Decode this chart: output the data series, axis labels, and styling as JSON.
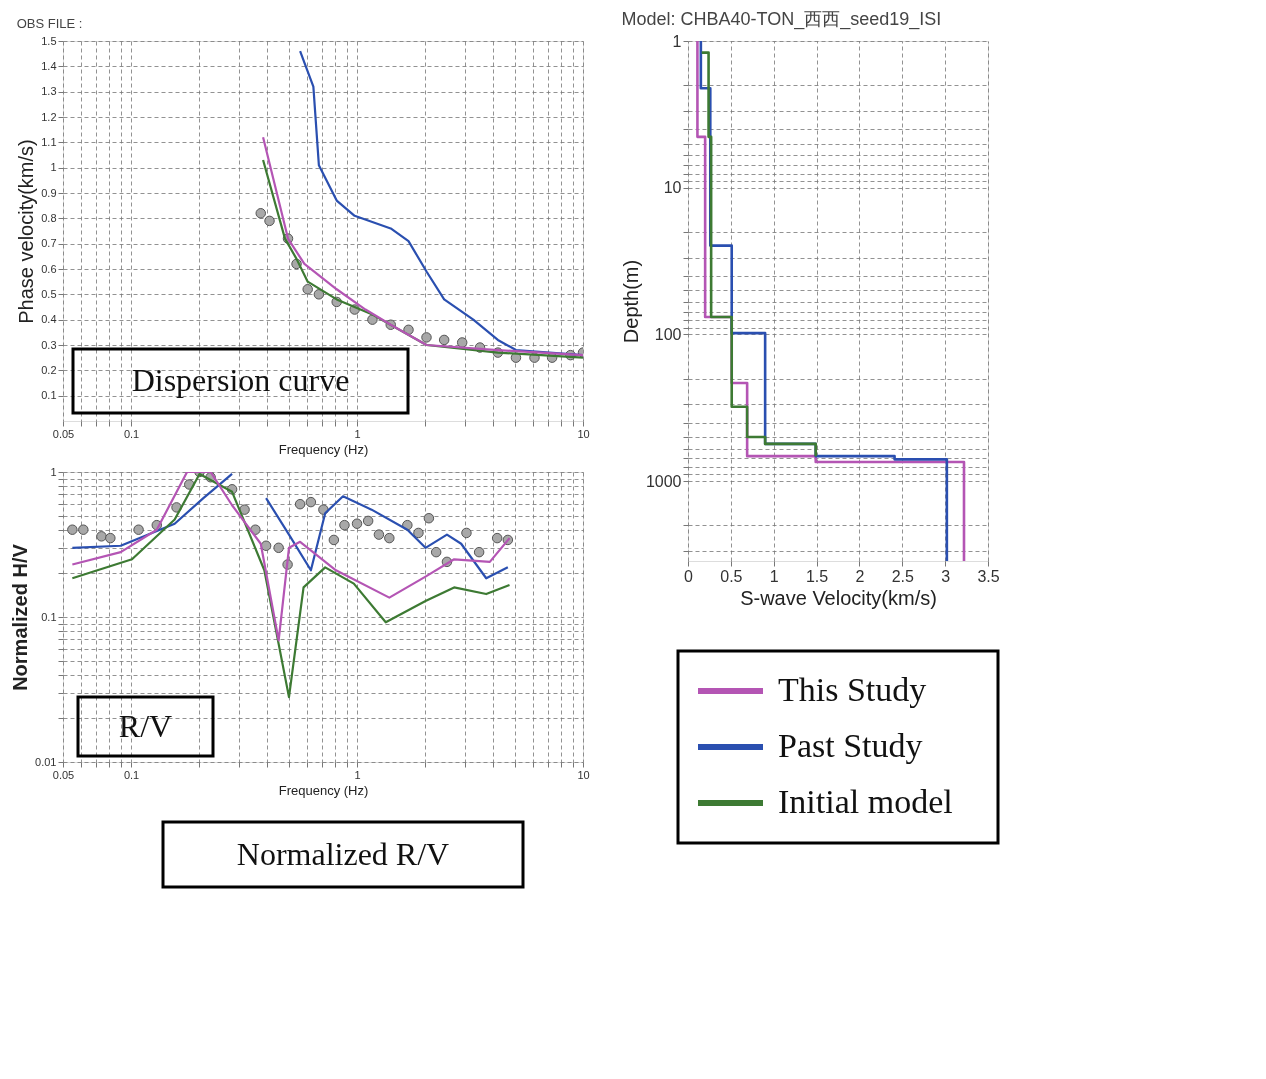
{
  "chart_data": [
    {
      "type": "line",
      "title": "OBS FILE :",
      "xlabel": "Frequency (Hz)",
      "ylabel": "Phase velocity(km/s)",
      "log": "x",
      "grid": true,
      "xlim": [
        0.05,
        10
      ],
      "ylim": [
        0,
        1.5
      ],
      "xticks": [
        0.05,
        {
          "value": 0.06,
          "label": null
        },
        {
          "value": 0.07,
          "label": null
        },
        {
          "value": 0.08,
          "label": null
        },
        {
          "value": 0.09,
          "label": null
        },
        0.1,
        {
          "value": 0.2,
          "label": null
        },
        {
          "value": 0.3,
          "label": null
        },
        {
          "value": 0.4,
          "label": null
        },
        {
          "value": 0.5,
          "label": null
        },
        {
          "value": 0.6,
          "label": null
        },
        {
          "value": 0.7,
          "label": null
        },
        {
          "value": 0.8,
          "label": null
        },
        {
          "value": 0.9,
          "label": null
        },
        1,
        {
          "value": 2,
          "label": null
        },
        {
          "value": 3,
          "label": null
        },
        {
          "value": 4,
          "label": null
        },
        {
          "value": 5,
          "label": null
        },
        {
          "value": 6,
          "label": null
        },
        {
          "value": 7,
          "label": null
        },
        {
          "value": 8,
          "label": null
        },
        {
          "value": 9,
          "label": null
        },
        10
      ],
      "yticks": [
        0.1,
        0.2,
        0.3,
        0.4,
        0.5,
        0.6,
        0.7,
        0.8,
        0.9,
        1,
        1.1,
        1.2,
        1.3,
        1.4,
        1.5
      ],
      "series": [
        {
          "type": "scatter",
          "marker": "circle",
          "color": "#a8a8a8",
          "x": [
            0.375,
            0.41,
            0.495,
            0.54,
            0.605,
            0.678,
            0.813,
            0.976,
            1.17,
            1.41,
            1.69,
            2.03,
            2.43,
            2.92,
            3.5,
            4.2,
            5.05,
            6.1,
            7.3,
            8.8,
            10
          ],
          "values": [
            0.82,
            0.79,
            0.72,
            0.62,
            0.52,
            0.5,
            0.47,
            0.44,
            0.4,
            0.38,
            0.36,
            0.33,
            0.32,
            0.31,
            0.29,
            0.27,
            0.25,
            0.25,
            0.25,
            0.26,
            0.27
          ]
        },
        {
          "color": "#2a4fb0",
          "x": [
            0.56,
            0.641,
            0.678,
            0.813,
            0.976,
            1.41,
            1.69,
            2.03,
            2.43,
            3.27,
            4.2,
            5.05,
            10
          ],
          "values": [
            1.46,
            1.32,
            1.01,
            0.87,
            0.81,
            0.76,
            0.71,
            0.59,
            0.48,
            0.4,
            0.32,
            0.28,
            0.26
          ]
        },
        {
          "color": "#3d7a33",
          "x": [
            0.384,
            0.48,
            0.54,
            0.605,
            0.813,
            1.17,
            2.03,
            4.2,
            10
          ],
          "values": [
            1.03,
            0.72,
            0.64,
            0.55,
            0.48,
            0.42,
            0.3,
            0.27,
            0.25
          ]
        },
        {
          "color": "#b455b4",
          "x": [
            0.384,
            0.495,
            0.585,
            0.813,
            1.09,
            1.41,
            2.03,
            4.2,
            10
          ],
          "values": [
            1.12,
            0.72,
            0.62,
            0.52,
            0.44,
            0.38,
            0.3,
            0.28,
            0.26
          ]
        }
      ],
      "annotations": [
        "Dispersion curve"
      ]
    },
    {
      "type": "line",
      "xlabel": "Frequency (Hz)",
      "ylabel": "Normalized H/V",
      "log": "xy",
      "grid": true,
      "xlim": [
        0.05,
        10
      ],
      "ylim": [
        0.01,
        1
      ],
      "xticks": [
        0.05,
        {
          "value": 0.06,
          "label": null
        },
        {
          "value": 0.07,
          "label": null
        },
        {
          "value": 0.08,
          "label": null
        },
        {
          "value": 0.09,
          "label": null
        },
        0.1,
        {
          "value": 0.2,
          "label": null
        },
        {
          "value": 0.3,
          "label": null
        },
        {
          "value": 0.4,
          "label": null
        },
        {
          "value": 0.5,
          "label": null
        },
        {
          "value": 0.6,
          "label": null
        },
        {
          "value": 0.7,
          "label": null
        },
        {
          "value": 0.8,
          "label": null
        },
        {
          "value": 0.9,
          "label": null
        },
        1,
        {
          "value": 2,
          "label": null
        },
        {
          "value": 3,
          "label": null
        },
        {
          "value": 4,
          "label": null
        },
        {
          "value": 5,
          "label": null
        },
        {
          "value": 6,
          "label": null
        },
        {
          "value": 7,
          "label": null
        },
        {
          "value": 8,
          "label": null
        },
        {
          "value": 9,
          "label": null
        },
        10
      ],
      "yticks": [
        0.01,
        {
          "value": 0.02,
          "label": null
        },
        {
          "value": 0.03,
          "label": null
        },
        {
          "value": 0.04,
          "label": null
        },
        {
          "value": 0.05,
          "label": null
        },
        {
          "value": 0.06,
          "label": null
        },
        {
          "value": 0.07,
          "label": null
        },
        {
          "value": 0.08,
          "label": null
        },
        {
          "value": 0.09,
          "label": null
        },
        0.1,
        {
          "value": 0.2,
          "label": null
        },
        {
          "value": 0.3,
          "label": null
        },
        {
          "value": 0.4,
          "label": null
        },
        {
          "value": 0.5,
          "label": null
        },
        {
          "value": 0.6,
          "label": null
        },
        {
          "value": 0.7,
          "label": null
        },
        {
          "value": 0.8,
          "label": null
        },
        {
          "value": 0.9,
          "label": null
        },
        1
      ],
      "series": [
        {
          "type": "scatter",
          "marker": "circle",
          "color": "#a8a8a8",
          "x": [
            0.055,
            0.0615,
            0.074,
            0.081,
            0.108,
            0.13,
            0.159,
            0.181,
            0.201,
            0.225,
            0.28,
            0.318,
            0.355,
            0.396,
            0.45,
            0.493,
            0.56,
            0.625,
            0.71,
            0.79,
            0.88,
            1.0,
            1.12,
            1.25,
            1.39,
            1.67,
            1.87,
            2.08,
            2.24,
            2.5,
            3.05,
            3.47,
            4.17,
            4.65
          ],
          "values": [
            0.4,
            0.4,
            0.36,
            0.35,
            0.4,
            0.43,
            0.57,
            0.82,
            1.0,
            0.92,
            0.76,
            0.55,
            0.4,
            0.31,
            0.3,
            0.23,
            0.6,
            0.62,
            0.55,
            0.34,
            0.43,
            0.44,
            0.46,
            0.37,
            0.35,
            0.43,
            0.38,
            0.48,
            0.28,
            0.24,
            0.38,
            0.28,
            0.35,
            0.34
          ]
        },
        {
          "color": "#2a4fb0",
          "x": [
            0.055,
            0.09,
            0.156,
            0.209,
            0.28,
            0.33,
            0.396,
            0.5,
            0.625,
            0.723,
            0.867,
            1.16,
            1.67,
            2.01,
            2.5,
            2.89,
            3.73,
            4.65
          ],
          "values": [
            0.3,
            0.31,
            0.44,
            0.66,
            0.97,
            null,
            0.66,
            0.37,
            0.21,
            0.52,
            0.68,
            0.55,
            0.4,
            0.3,
            0.37,
            0.32,
            0.185,
            0.22
          ]
        },
        {
          "color": "#3d7a33",
          "x": [
            0.055,
            0.101,
            0.156,
            0.201,
            0.28,
            0.389,
            0.5,
            0.58,
            0.723,
            0.968,
            1.34,
            2.01,
            2.69,
            3.73,
            4.73
          ],
          "values": [
            0.185,
            0.25,
            0.47,
            0.97,
            0.73,
            0.21,
            0.028,
            0.16,
            0.22,
            0.17,
            0.092,
            0.129,
            0.16,
            0.144,
            0.166
          ]
        },
        {
          "color": "#b455b4",
          "x": [
            0.055,
            0.09,
            0.13,
            0.177,
            0.225,
            0.28,
            0.375,
            0.45,
            0.5,
            0.56,
            0.807,
            1.39,
            2.01,
            2.69,
            3.87,
            4.73
          ],
          "values": [
            0.23,
            0.28,
            0.4,
            1.0,
            1.0,
            0.59,
            0.32,
            0.069,
            0.3,
            0.33,
            0.21,
            0.136,
            0.19,
            0.25,
            0.24,
            0.35
          ]
        }
      ],
      "annotations": [
        "R/V",
        "Normalized R/V"
      ]
    },
    {
      "type": "line",
      "title": "Model: CHBA40-TON_西西_seed19_ISI",
      "xlabel": "S-wave Velocity(km/s)",
      "ylabel": "Depth(m)",
      "log": "y",
      "grid": true,
      "legend": "bottom",
      "xlim": [
        0,
        3.5
      ],
      "ylim": [
        3500,
        1
      ],
      "xticks": [
        0,
        0.5,
        1,
        1.5,
        2,
        2.5,
        3,
        3.5
      ],
      "yticks": [
        1,
        {
          "value": 2,
          "label": null
        },
        {
          "value": 3,
          "label": null
        },
        {
          "value": 4,
          "label": null
        },
        {
          "value": 5,
          "label": null
        },
        {
          "value": 6,
          "label": null
        },
        {
          "value": 7,
          "label": null
        },
        {
          "value": 8,
          "label": null
        },
        {
          "value": 9,
          "label": null
        },
        10,
        {
          "value": 20,
          "label": null
        },
        {
          "value": 30,
          "label": null
        },
        {
          "value": 40,
          "label": null
        },
        {
          "value": 50,
          "label": null
        },
        {
          "value": 60,
          "label": null
        },
        {
          "value": 70,
          "label": null
        },
        {
          "value": 80,
          "label": null
        },
        {
          "value": 90,
          "label": null
        },
        100,
        {
          "value": 200,
          "label": null
        },
        {
          "value": 300,
          "label": null
        },
        {
          "value": 400,
          "label": null
        },
        {
          "value": 500,
          "label": null
        },
        {
          "value": 600,
          "label": null
        },
        {
          "value": 700,
          "label": null
        },
        {
          "value": 800,
          "label": null
        },
        {
          "value": 900,
          "label": null
        },
        1000,
        {
          "value": 2000,
          "label": null
        },
        {
          "value": 3000,
          "label": null
        }
      ],
      "series": [
        {
          "name": "This Study",
          "color": "#b455b4",
          "x": [
            0.11,
            0.11,
            0.2,
            0.2,
            0.51,
            0.51,
            0.69,
            0.69,
            1.49,
            1.49,
            3.22,
            3.22
          ],
          "values": [
            1,
            4.5,
            4.5,
            76,
            76,
            214,
            214,
            675,
            675,
            740,
            740,
            3500
          ]
        },
        {
          "name": "Past Study",
          "color": "#2a4fb0",
          "x": [
            0.15,
            0.15,
            0.26,
            0.26,
            0.51,
            0.51,
            0.9,
            0.9,
            1.49,
            1.49,
            2.41,
            2.41,
            3.02,
            3.02
          ],
          "values": [
            1,
            2.1,
            2.1,
            24.8,
            24.8,
            98,
            98,
            557,
            557,
            675,
            675,
            710,
            710,
            3500
          ]
        },
        {
          "name": "Initial model",
          "color": "#3d7a33",
          "x": [
            0.16,
            0.24,
            0.24,
            0.27,
            0.27,
            0.51,
            0.51,
            0.69,
            0.69,
            0.9,
            0.9,
            1.49,
            1.49
          ],
          "values": [
            1.2,
            1.2,
            4.5,
            4.5,
            76,
            76,
            311,
            311,
            500,
            500,
            557,
            557,
            675
          ]
        }
      ]
    }
  ]
}
